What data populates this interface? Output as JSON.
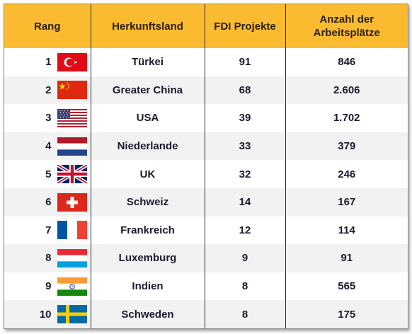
{
  "headers": {
    "rank": "Rang",
    "country": "Herkunftsland",
    "fdi": "FDI Projekte",
    "jobs": "Anzahl der Arbeitsplätze"
  },
  "rows": [
    {
      "rank": "1",
      "country": "Türkei",
      "fdi": "91",
      "jobs": "846",
      "flag": "turkey-flag"
    },
    {
      "rank": "2",
      "country": "Greater China",
      "fdi": "68",
      "jobs": "2.606",
      "flag": "china-flag"
    },
    {
      "rank": "3",
      "country": "USA",
      "fdi": "39",
      "jobs": "1.702",
      "flag": "usa-flag"
    },
    {
      "rank": "4",
      "country": "Niederlande",
      "fdi": "33",
      "jobs": "379",
      "flag": "netherlands-flag"
    },
    {
      "rank": "5",
      "country": "UK",
      "fdi": "32",
      "jobs": "246",
      "flag": "uk-flag"
    },
    {
      "rank": "6",
      "country": "Schweiz",
      "fdi": "14",
      "jobs": "167",
      "flag": "switzerland-flag"
    },
    {
      "rank": "7",
      "country": "Frankreich",
      "fdi": "12",
      "jobs": "114",
      "flag": "france-flag"
    },
    {
      "rank": "8",
      "country": "Luxemburg",
      "fdi": "9",
      "jobs": "91",
      "flag": "luxembourg-flag"
    },
    {
      "rank": "9",
      "country": "Indien",
      "fdi": "8",
      "jobs": "565",
      "flag": "india-flag"
    },
    {
      "rank": "10",
      "country": "Schweden",
      "fdi": "8",
      "jobs": "175",
      "flag": "sweden-flag"
    }
  ],
  "colors": {
    "header_bg": "#fbbb30",
    "row_alt_bg": "#f2f2f2",
    "text": "#1a1a2e"
  }
}
